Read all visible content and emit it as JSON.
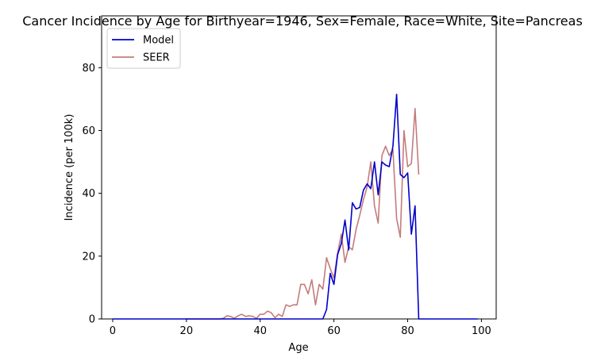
{
  "chart_data": {
    "type": "line",
    "title": "Cancer Incidence by Age for Birthyear=1946, Sex=Female, Race=White, Site=Pancreas",
    "xlabel": "Age",
    "ylabel": "Incidence (per 100k)",
    "xlim": [
      -3,
      104
    ],
    "ylim": [
      0,
      96.5
    ],
    "xticks": [
      0,
      20,
      40,
      60,
      80,
      100
    ],
    "yticks": [
      0,
      20,
      40,
      60,
      80
    ],
    "legend": {
      "placement": "top-left",
      "entries": [
        "Model",
        "SEER"
      ]
    },
    "grid": false,
    "series": [
      {
        "name": "Model",
        "color": "#0000cc",
        "x": [
          0,
          56,
          57,
          58,
          59,
          60,
          61,
          62,
          63,
          64,
          65,
          66,
          67,
          68,
          69,
          70,
          71,
          72,
          73,
          74,
          75,
          76,
          77,
          78,
          79,
          80,
          81,
          82,
          83,
          99
        ],
        "y": [
          0,
          0,
          0,
          3,
          14.5,
          11,
          20.5,
          24,
          31.5,
          22,
          37,
          35,
          35.5,
          41,
          43,
          41.5,
          50,
          39.5,
          50,
          49,
          48.5,
          55,
          71.5,
          46,
          45,
          46.5,
          27,
          36,
          0,
          0
        ]
      },
      {
        "name": "SEER",
        "color": "#c47c7c",
        "x": [
          20,
          21,
          22,
          23,
          24,
          25,
          26,
          27,
          28,
          29,
          30,
          31,
          32,
          33,
          34,
          35,
          36,
          37,
          38,
          39,
          40,
          41,
          42,
          43,
          44,
          45,
          46,
          47,
          48,
          49,
          50,
          51,
          52,
          53,
          54,
          55,
          56,
          57,
          58,
          59,
          60,
          61,
          62,
          63,
          64,
          65,
          66,
          67,
          68,
          69,
          70,
          71,
          72,
          73,
          74,
          75,
          76,
          77,
          78,
          79,
          80,
          81,
          82,
          83
        ],
        "y": [
          0,
          0,
          0,
          0,
          0,
          0,
          0,
          0,
          0,
          0,
          0.2,
          1,
          0.8,
          0.2,
          1,
          1.5,
          0.8,
          1,
          0.8,
          0.2,
          1.5,
          1.5,
          2.5,
          2,
          0.4,
          1.5,
          0.8,
          4.5,
          4,
          4.5,
          4.5,
          11,
          11,
          8,
          12.5,
          4.5,
          11,
          9.5,
          19.5,
          16,
          13,
          21,
          27,
          18,
          23,
          22,
          28.5,
          33,
          38,
          42,
          50,
          36,
          30.5,
          52,
          55,
          52,
          54,
          32,
          26,
          60,
          48.5,
          49.5,
          67,
          46
        ]
      }
    ]
  }
}
